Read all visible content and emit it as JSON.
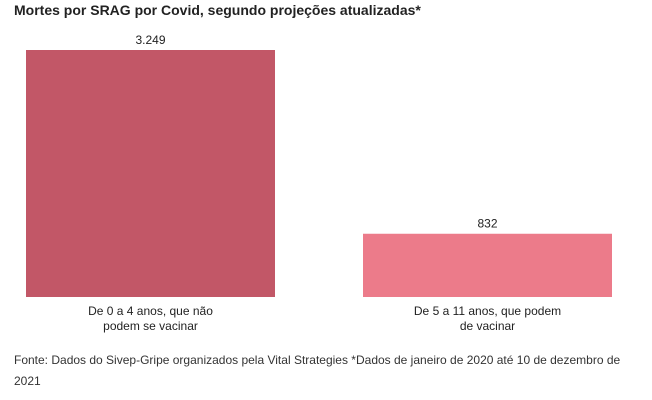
{
  "chart_data": {
    "type": "bar",
    "title": "Mortes por SRAG por Covid, segundo projeções atualizadas*",
    "categories": [
      [
        "De 0 a 4 anos, que não",
        "podem se vacinar"
      ],
      [
        "De 5 a 11 anos, que podem",
        "de vacinar"
      ]
    ],
    "values": [
      3249,
      832
    ],
    "value_labels": [
      "3.249",
      "832"
    ],
    "colors": [
      "#c25767",
      "#ec7b8a"
    ],
    "xlabel": "",
    "ylabel": "",
    "ylim": [
      0,
      3249
    ],
    "grid": false,
    "legend": "none"
  },
  "source": "Fonte: Dados do Sivep-Gripe organizados pela Vital Strategies *Dados de janeiro de 2020 até 10 de dezembro de 2021"
}
